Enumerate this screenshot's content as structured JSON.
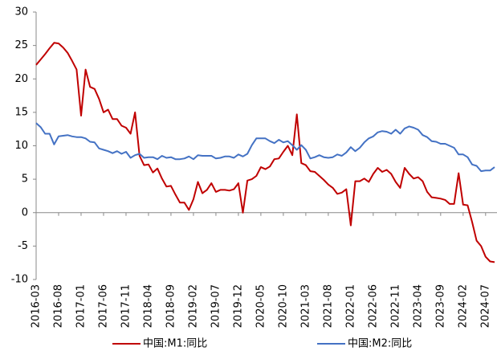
{
  "chart_data": {
    "type": "line",
    "categories": [
      "2016-03",
      null,
      null,
      null,
      null,
      "2016-08",
      null,
      null,
      null,
      null,
      "2017-01",
      null,
      null,
      null,
      null,
      "2017-06",
      null,
      null,
      null,
      null,
      "2017-11",
      null,
      null,
      null,
      null,
      "2018-04",
      null,
      null,
      null,
      null,
      "2018-09",
      null,
      null,
      null,
      null,
      "2019-02",
      null,
      null,
      null,
      null,
      "2019-07",
      null,
      null,
      null,
      null,
      "2019-12",
      null,
      null,
      null,
      null,
      "2020-05",
      null,
      null,
      null,
      null,
      "2020-10",
      null,
      null,
      null,
      null,
      "2021-03",
      null,
      null,
      null,
      null,
      "2021-08",
      null,
      null,
      null,
      null,
      "2022-01",
      null,
      null,
      null,
      null,
      "2022-06",
      null,
      null,
      null,
      null,
      "2022-11",
      null,
      null,
      null,
      null,
      "2023-04",
      null,
      null,
      null,
      null,
      "2023-09",
      null,
      null,
      null,
      null,
      "2024-02",
      null,
      null,
      null,
      null,
      "2024-07",
      null,
      null
    ],
    "series": [
      {
        "name": "中国:M1:同比",
        "color": "#c00000",
        "values": [
          22.1,
          22.9,
          23.7,
          24.6,
          25.4,
          25.3,
          24.7,
          23.9,
          22.7,
          21.4,
          14.5,
          21.4,
          18.8,
          18.5,
          17.0,
          15.0,
          15.4,
          14.0,
          14.0,
          13.0,
          12.7,
          11.8,
          15.0,
          8.5,
          7.1,
          7.2,
          6.0,
          6.6,
          5.1,
          3.9,
          4.0,
          2.7,
          1.5,
          1.5,
          0.4,
          2.0,
          4.6,
          2.9,
          3.4,
          4.4,
          3.1,
          3.4,
          3.4,
          3.3,
          3.5,
          4.4,
          0.0,
          4.8,
          5.0,
          5.5,
          6.8,
          6.5,
          6.9,
          8.0,
          8.1,
          9.1,
          10.0,
          8.6,
          14.7,
          7.4,
          7.1,
          6.2,
          6.1,
          5.5,
          4.9,
          4.2,
          3.7,
          2.8,
          3.0,
          3.5,
          -1.9,
          4.7,
          4.7,
          5.1,
          4.6,
          5.8,
          6.7,
          6.1,
          6.4,
          5.8,
          4.6,
          3.7,
          6.7,
          5.8,
          5.1,
          5.3,
          4.7,
          3.1,
          2.3,
          2.2,
          2.1,
          1.9,
          1.3,
          1.3,
          5.9,
          1.2,
          1.1,
          -1.4,
          -4.2,
          -5.0,
          -6.6,
          -7.3,
          -7.4
        ]
      },
      {
        "name": "中国:M2:同比",
        "color": "#4472c4",
        "values": [
          13.4,
          12.8,
          11.8,
          11.8,
          10.2,
          11.4,
          11.5,
          11.6,
          11.4,
          11.3,
          11.3,
          11.1,
          10.6,
          10.5,
          9.6,
          9.4,
          9.2,
          8.9,
          9.2,
          8.8,
          9.1,
          8.2,
          8.6,
          8.8,
          8.2,
          8.3,
          8.3,
          8.0,
          8.5,
          8.2,
          8.3,
          8.0,
          8.0,
          8.1,
          8.4,
          8.0,
          8.6,
          8.5,
          8.5,
          8.5,
          8.1,
          8.2,
          8.4,
          8.4,
          8.2,
          8.7,
          8.4,
          8.8,
          10.1,
          11.1,
          11.1,
          11.1,
          10.7,
          10.4,
          10.9,
          10.5,
          10.7,
          10.1,
          9.4,
          10.1,
          9.4,
          8.1,
          8.3,
          8.6,
          8.3,
          8.2,
          8.3,
          8.7,
          8.5,
          9.0,
          9.8,
          9.2,
          9.7,
          10.5,
          11.1,
          11.4,
          12.0,
          12.2,
          12.1,
          11.8,
          12.4,
          11.8,
          12.6,
          12.9,
          12.7,
          12.4,
          11.6,
          11.3,
          10.7,
          10.6,
          10.3,
          10.3,
          10.0,
          9.7,
          8.7,
          8.7,
          8.3,
          7.2,
          7.0,
          6.2,
          6.3,
          6.3,
          6.8
        ]
      }
    ],
    "ylim": [
      -10,
      30
    ],
    "yticks": [
      -10,
      -5,
      0,
      5,
      10,
      15,
      20,
      25,
      30
    ],
    "legend": "bottom"
  }
}
